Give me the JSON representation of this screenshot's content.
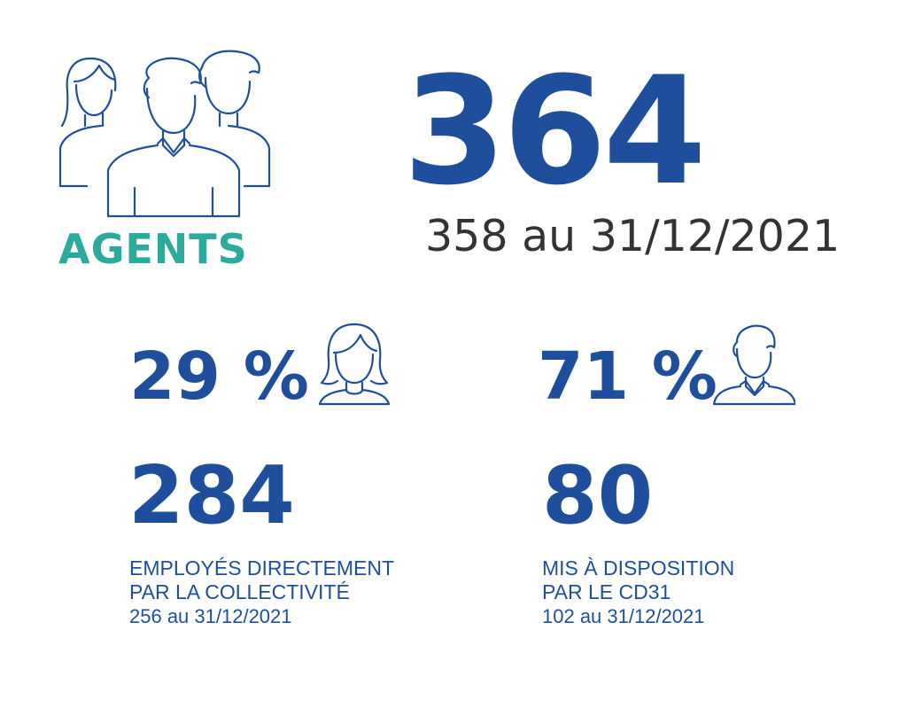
{
  "header": {
    "label": "AGENTS",
    "total": "364",
    "total_previous": "358 au 31/12/2021"
  },
  "women": {
    "percent": "29 %",
    "icon": "woman-icon"
  },
  "men": {
    "percent": "71 %",
    "icon": "man-icon"
  },
  "employees": {
    "count": "284",
    "line1": "EMPLOYÉS DIRECTEMENT",
    "line2": "PAR LA COLLECTIVITÉ",
    "previous": "256 au 31/12/2021"
  },
  "seconded": {
    "count": "80",
    "line1": "MIS À DISPOSITION",
    "line2": "PAR LE CD31",
    "previous": "102 au 31/12/2021"
  },
  "colors": {
    "primary_blue": "#1f4f9c",
    "teal": "#2cab9c",
    "dark_text": "#333333"
  },
  "icons": {
    "group": "people-group-icon"
  }
}
